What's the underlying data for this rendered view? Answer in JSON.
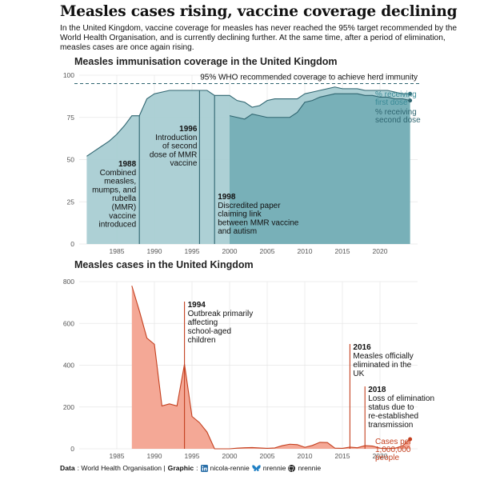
{
  "title": "Measles cases rising, vaccine coverage declining",
  "subtitle": "In the United Kingdom, vaccine coverage for measles has never reached the 95% target recommended by the World Health Organisation, and is currently declining further. At the same time, after a period of elimination, measles cases are once again rising.",
  "caption": {
    "data_label": "Data",
    "data_source": ": World Health Organisation | ",
    "graphic_label": "Graphic",
    "linkedin": "nicola-rennie",
    "bluesky": "nrennie",
    "github": "nrennie"
  },
  "colors": {
    "first_dose": "#a9cdd3",
    "second_dose": "#78b0b8",
    "coverage_line": "#2f6570",
    "cases_fill": "#f4a896",
    "cases_line": "#c43f1e",
    "target_line": "#2f6570"
  },
  "chart_data": [
    {
      "type": "area",
      "title": "Measles immunisation coverage in the United Kingdom",
      "xlim": [
        1980,
        2025
      ],
      "ylim": [
        0,
        100
      ],
      "x_ticks": [
        1985,
        1990,
        1995,
        2000,
        2005,
        2010,
        2015,
        2020
      ],
      "y_ticks": [
        0,
        25,
        50,
        75,
        100
      ],
      "grid": true,
      "reference_line": {
        "value": 95,
        "label": "95% WHO recommended coverage to achieve herd immunity"
      },
      "series": [
        {
          "name": "% receiving first dose",
          "x": [
            1981,
            1982,
            1983,
            1984,
            1985,
            1986,
            1987,
            1988,
            1989,
            1990,
            1991,
            1992,
            1993,
            1994,
            1995,
            1996,
            1997,
            1998,
            1999,
            2000,
            2001,
            2002,
            2003,
            2004,
            2005,
            2006,
            2007,
            2008,
            2009,
            2010,
            2011,
            2012,
            2013,
            2014,
            2015,
            2016,
            2017,
            2018,
            2019,
            2020,
            2021,
            2022,
            2023,
            2024
          ],
          "values": [
            52,
            55,
            58,
            61,
            65,
            70,
            76,
            76,
            86,
            89,
            90,
            91,
            91,
            91,
            91,
            91,
            91,
            88,
            88,
            88,
            85,
            84,
            81,
            82,
            85,
            86,
            86,
            86,
            86,
            89,
            90,
            91,
            92,
            93,
            92,
            92,
            92,
            91,
            91,
            91,
            91,
            90,
            89,
            89
          ]
        },
        {
          "name": "% receiving second dose",
          "x": [
            2000,
            2001,
            2002,
            2003,
            2004,
            2005,
            2006,
            2007,
            2008,
            2009,
            2010,
            2011,
            2012,
            2013,
            2014,
            2015,
            2016,
            2017,
            2018,
            2019,
            2020,
            2021,
            2022,
            2023,
            2024
          ],
          "values": [
            76,
            75,
            74,
            77,
            76,
            75,
            75,
            75,
            75,
            78,
            84,
            85,
            87,
            88,
            89,
            89,
            89,
            89,
            88,
            88,
            87,
            87,
            86,
            86,
            85
          ]
        }
      ],
      "annotations": [
        {
          "year": 1988,
          "year_label": "1988",
          "text": [
            "Combined",
            "measles,",
            "mumps, and",
            "rubella",
            "(MMR)",
            "vaccine",
            "introduced"
          ]
        },
        {
          "year": 1996,
          "year_label": "1996",
          "text": [
            "Introduction",
            "of second",
            "dose of MMR",
            "vaccine"
          ]
        },
        {
          "year": 1998,
          "year_label": "1998",
          "text": [
            "Discredited paper",
            "claiming link",
            "between MMR vaccine",
            "and autism"
          ]
        }
      ]
    },
    {
      "type": "area",
      "title": "Measles cases in the United Kingdom",
      "xlim": [
        1980,
        2025
      ],
      "ylim": [
        0,
        800
      ],
      "x_ticks": [
        1985,
        1990,
        1995,
        2000,
        2005,
        2010,
        2015,
        2020
      ],
      "y_ticks": [
        0,
        200,
        400,
        600,
        800
      ],
      "grid": true,
      "series": [
        {
          "name": "Cases per 1,000,000 people",
          "x": [
            1987,
            1988,
            1989,
            1990,
            1991,
            1992,
            1993,
            1994,
            1995,
            1996,
            1997,
            1998,
            1999,
            2000,
            2001,
            2002,
            2003,
            2004,
            2005,
            2006,
            2007,
            2008,
            2009,
            2010,
            2011,
            2012,
            2013,
            2014,
            2015,
            2016,
            2017,
            2018,
            2019,
            2020,
            2021,
            2022,
            2023,
            2024
          ],
          "values": [
            780,
            660,
            530,
            500,
            205,
            215,
            205,
            405,
            155,
            125,
            80,
            0,
            0,
            0,
            3,
            5,
            6,
            4,
            2,
            4,
            15,
            22,
            20,
            7,
            16,
            31,
            30,
            3,
            2,
            8,
            5,
            15,
            13,
            3,
            1,
            3,
            14,
            46
          ]
        }
      ],
      "annotations": [
        {
          "year": 1994,
          "year_label": "1994",
          "text": [
            "Outbreak primarily",
            "affecting",
            "school-aged",
            "children"
          ]
        },
        {
          "year": 2016,
          "year_label": "2016",
          "text": [
            "Measles officially",
            "eliminated in the",
            "UK"
          ]
        },
        {
          "year": 2018,
          "year_label": "2018",
          "text": [
            "Loss of elimination",
            "status due to",
            "re-established",
            "transmission"
          ]
        }
      ]
    }
  ]
}
